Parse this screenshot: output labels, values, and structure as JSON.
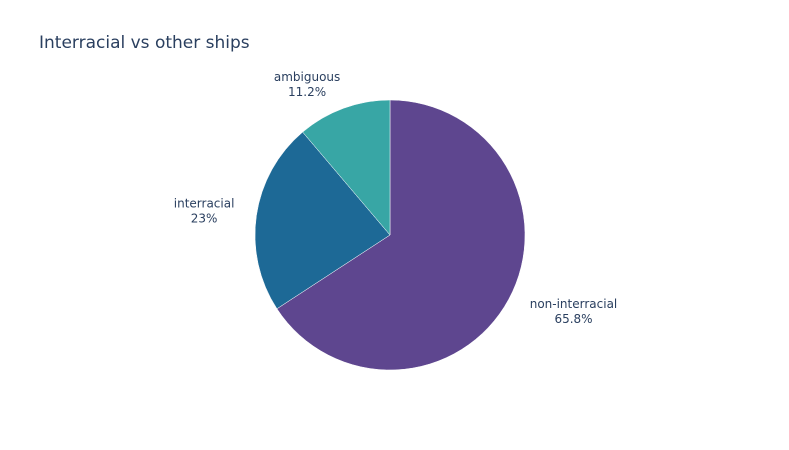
{
  "chart_data": {
    "type": "pie",
    "title": "Interracial vs other ships",
    "labels": [
      "non-interracial",
      "interracial",
      "ambiguous"
    ],
    "values": [
      65.8,
      23,
      11.2
    ],
    "percent_labels": [
      "65.8%",
      "23%",
      "11.2%"
    ],
    "colors": [
      "#5e468f",
      "#1d6996",
      "#38a6a5"
    ],
    "start_angle_deg": 90,
    "direction": "clockwise",
    "legend": "none"
  }
}
